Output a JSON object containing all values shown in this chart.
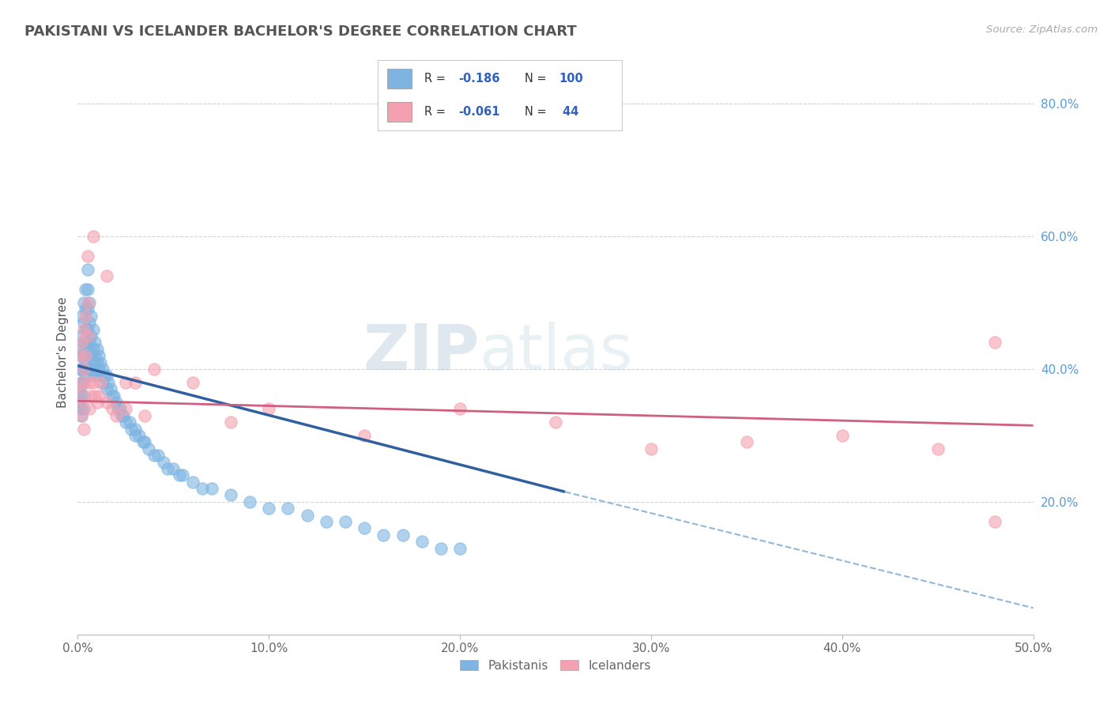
{
  "title": "PAKISTANI VS ICELANDER BACHELOR'S DEGREE CORRELATION CHART",
  "source": "Source: ZipAtlas.com",
  "ylabel": "Bachelor's Degree",
  "xlim": [
    0.0,
    0.5
  ],
  "ylim": [
    0.0,
    0.85
  ],
  "xticks": [
    0.0,
    0.1,
    0.2,
    0.3,
    0.4,
    0.5
  ],
  "yticks_right": [
    0.2,
    0.4,
    0.6,
    0.8
  ],
  "pakistani_color": "#7eb4e2",
  "icelander_color": "#f4a0b0",
  "trend_blue": "#3060a0",
  "trend_pink": "#d06080",
  "trend_dashed": "#90b8d8",
  "watermark_zip": "ZIP",
  "watermark_atlas": "atlas",
  "pakistani_x": [
    0.001,
    0.001,
    0.001,
    0.001,
    0.002,
    0.002,
    0.002,
    0.002,
    0.002,
    0.002,
    0.002,
    0.002,
    0.003,
    0.003,
    0.003,
    0.003,
    0.003,
    0.003,
    0.003,
    0.003,
    0.004,
    0.004,
    0.004,
    0.004,
    0.004,
    0.004,
    0.005,
    0.005,
    0.005,
    0.005,
    0.005,
    0.006,
    0.006,
    0.006,
    0.006,
    0.006,
    0.007,
    0.007,
    0.007,
    0.007,
    0.008,
    0.008,
    0.008,
    0.008,
    0.009,
    0.009,
    0.009,
    0.01,
    0.01,
    0.01,
    0.011,
    0.011,
    0.012,
    0.012,
    0.013,
    0.013,
    0.014,
    0.015,
    0.015,
    0.016,
    0.017,
    0.018,
    0.019,
    0.02,
    0.021,
    0.022,
    0.023,
    0.024,
    0.025,
    0.027,
    0.028,
    0.03,
    0.03,
    0.032,
    0.034,
    0.035,
    0.037,
    0.04,
    0.042,
    0.045,
    0.047,
    0.05,
    0.053,
    0.055,
    0.06,
    0.065,
    0.07,
    0.08,
    0.09,
    0.1,
    0.11,
    0.12,
    0.13,
    0.14,
    0.15,
    0.16,
    0.17,
    0.18,
    0.19,
    0.2
  ],
  "pakistani_y": [
    0.43,
    0.4,
    0.37,
    0.35,
    0.48,
    0.45,
    0.42,
    0.4,
    0.38,
    0.36,
    0.34,
    0.33,
    0.5,
    0.47,
    0.44,
    0.42,
    0.4,
    0.38,
    0.36,
    0.34,
    0.52,
    0.49,
    0.46,
    0.43,
    0.41,
    0.39,
    0.55,
    0.52,
    0.49,
    0.46,
    0.44,
    0.5,
    0.47,
    0.44,
    0.42,
    0.4,
    0.48,
    0.45,
    0.42,
    0.4,
    0.46,
    0.43,
    0.41,
    0.39,
    0.44,
    0.42,
    0.4,
    0.43,
    0.41,
    0.39,
    0.42,
    0.4,
    0.41,
    0.39,
    0.4,
    0.38,
    0.39,
    0.39,
    0.37,
    0.38,
    0.37,
    0.36,
    0.36,
    0.35,
    0.34,
    0.34,
    0.33,
    0.33,
    0.32,
    0.32,
    0.31,
    0.31,
    0.3,
    0.3,
    0.29,
    0.29,
    0.28,
    0.27,
    0.27,
    0.26,
    0.25,
    0.25,
    0.24,
    0.24,
    0.23,
    0.22,
    0.22,
    0.21,
    0.2,
    0.19,
    0.19,
    0.18,
    0.17,
    0.17,
    0.16,
    0.15,
    0.15,
    0.14,
    0.13,
    0.13
  ],
  "icelander_x": [
    0.001,
    0.001,
    0.002,
    0.002,
    0.003,
    0.003,
    0.004,
    0.004,
    0.005,
    0.005,
    0.006,
    0.006,
    0.007,
    0.008,
    0.009,
    0.01,
    0.011,
    0.012,
    0.015,
    0.018,
    0.02,
    0.025,
    0.03,
    0.035,
    0.04,
    0.06,
    0.08,
    0.1,
    0.15,
    0.2,
    0.25,
    0.3,
    0.35,
    0.4,
    0.45,
    0.48,
    0.001,
    0.002,
    0.003,
    0.005,
    0.008,
    0.015,
    0.025,
    0.48
  ],
  "icelander_y": [
    0.42,
    0.37,
    0.44,
    0.38,
    0.46,
    0.4,
    0.48,
    0.42,
    0.5,
    0.45,
    0.38,
    0.34,
    0.36,
    0.38,
    0.36,
    0.35,
    0.36,
    0.38,
    0.35,
    0.34,
    0.33,
    0.34,
    0.38,
    0.33,
    0.4,
    0.38,
    0.32,
    0.34,
    0.3,
    0.34,
    0.32,
    0.28,
    0.29,
    0.3,
    0.28,
    0.17,
    0.35,
    0.33,
    0.31,
    0.57,
    0.6,
    0.54,
    0.38,
    0.44
  ],
  "blue_trend_x": [
    0.0,
    0.255
  ],
  "blue_trend_y": [
    0.405,
    0.215
  ],
  "pink_trend_x": [
    0.0,
    0.5
  ],
  "pink_trend_y": [
    0.352,
    0.315
  ],
  "dashed_trend_x": [
    0.255,
    0.5
  ],
  "dashed_trend_y": [
    0.215,
    0.04
  ]
}
